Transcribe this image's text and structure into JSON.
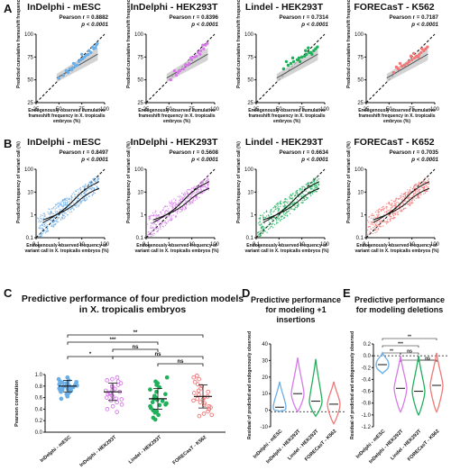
{
  "panels": {
    "A": "A",
    "B": "B",
    "C": "C",
    "D": "D",
    "E": "E"
  },
  "row_a": [
    {
      "title": "InDelphi - mESC",
      "r": "0.8882",
      "p": "p < 0.0001",
      "color": "#6aaee8"
    },
    {
      "title": "InDelphi - HEK293T",
      "r": "0.8396",
      "p": "p < 0.0001",
      "color": "#d67ae8"
    },
    {
      "title": "Lindel - HEK293T",
      "r": "0.7314",
      "p": "p < 0.0001",
      "color": "#21b05c"
    },
    {
      "title": "FORECasT - K562",
      "r": "0.7187",
      "p": "p < 0.0001",
      "color": "#f07878"
    }
  ],
  "row_a_axes": {
    "ylabel": "Predicted cumulative frameshift frequency (%)",
    "xlabel": "Endogenously observed cumulative frameshift frequency in X. tropicalis embryos (%)",
    "xticks": [
      "25",
      "50",
      "75",
      "100"
    ],
    "yticks": [
      "25",
      "50",
      "75",
      "100"
    ]
  },
  "row_b": [
    {
      "title": "InDelphi - mESC",
      "r": "0.8497",
      "p": "p < 0.0001",
      "color": "#6aaee8"
    },
    {
      "title": "InDelphi - HEK293T",
      "r": "0.5608",
      "p": "p < 0.0001",
      "color": "#d67ae8"
    },
    {
      "title": "Lindel - HEK293T",
      "r": "0.6634",
      "p": "p < 0.0001",
      "color": "#21b05c"
    },
    {
      "title": "FORECasT - K652",
      "r": "0.7035",
      "p": "p < 0.0001",
      "color": "#f07878"
    }
  ],
  "row_b_axes": {
    "ylabel": "Predicted frequency of variant call (%)",
    "xlabel": "Endogenously observed frequency of variant call in X. tropicalis embryos (%)",
    "xticks": [
      "0.1",
      "1",
      "10",
      "100"
    ],
    "yticks": [
      "0.1",
      "1",
      "10",
      "100"
    ]
  },
  "stat_prefix": "Pearson r = ",
  "panel_c": {
    "title": "Predictive performance of four prediction models in X. tropicalis embryos",
    "ylabel": "Pearson correlation",
    "yticks": [
      "0.0",
      "0.2",
      "0.4",
      "0.6",
      "0.8",
      "1.0"
    ],
    "categories": [
      "InDelphi - mESC",
      "InDelphi - HEK293T",
      "Lindel - HEK293T",
      "FORECasT - K562"
    ],
    "sig": [
      "**",
      "***",
      "*",
      "ns",
      "ns",
      "ns"
    ]
  },
  "panel_d": {
    "title": "Predictive performance for modeling +1 insertions",
    "ylabel": "Residual of predicted and endogenously observed",
    "yticks": [
      "-10",
      "0",
      "10",
      "20",
      "30",
      "40"
    ],
    "categories": [
      "InDelphi - mESC",
      "InDelphi - HEK293T",
      "Lindel - HEK293T",
      "FORECasT - K562"
    ]
  },
  "panel_e": {
    "title": "Predictive performance for modeling deletions",
    "ylabel": "Residual of predicted and endogenously observed",
    "yticks": [
      "-1.2",
      "-1.0",
      "-0.8",
      "-0.6",
      "-0.4",
      "-0.2",
      "0.0",
      "0.2"
    ],
    "categories": [
      "InDelphi - mESC",
      "InDelphi - HEK293T",
      "Lindel - HEK293T",
      "FORECasT - K562"
    ],
    "sig": [
      "**",
      "***",
      "**",
      "*",
      "ns",
      "ns"
    ]
  },
  "chart_data": [
    {
      "type": "scatter",
      "title": "InDelphi - mESC",
      "xlabel": "Endogenously observed cumulative frameshift frequency in X. tropicalis embryos (%)",
      "ylabel": "Predicted cumulative frameshift frequency (%)",
      "xlim": [
        25,
        100
      ],
      "ylim": [
        25,
        100
      ],
      "series": [
        {
          "values": [
            [
              55,
              55
            ],
            [
              60,
              58
            ],
            [
              62,
              62
            ],
            [
              65,
              63
            ],
            [
              68,
              65
            ],
            [
              70,
              66
            ],
            [
              72,
              70
            ],
            [
              74,
              72
            ],
            [
              76,
              73
            ],
            [
              78,
              75
            ],
            [
              80,
              77
            ],
            [
              82,
              78
            ],
            [
              85,
              80
            ],
            [
              88,
              84
            ],
            [
              90,
              85
            ],
            [
              92,
              90
            ],
            [
              50,
              52
            ],
            [
              58,
              60
            ],
            [
              66,
              68
            ],
            [
              75,
              78
            ],
            [
              83,
              82
            ],
            [
              87,
              86
            ],
            [
              91,
              88
            ],
            [
              64,
              61
            ]
          ]
        }
      ]
    },
    {
      "type": "scatter",
      "title": "InDelphi - HEK293T",
      "xlim": [
        25,
        100
      ],
      "ylim": [
        25,
        100
      ],
      "series": [
        {
          "values": [
            [
              52,
              50
            ],
            [
              58,
              55
            ],
            [
              62,
              60
            ],
            [
              66,
              62
            ],
            [
              70,
              66
            ],
            [
              72,
              68
            ],
            [
              75,
              72
            ],
            [
              78,
              75
            ],
            [
              80,
              76
            ],
            [
              82,
              80
            ],
            [
              85,
              82
            ],
            [
              88,
              84
            ],
            [
              90,
              88
            ],
            [
              92,
              90
            ],
            [
              60,
              58
            ],
            [
              68,
              66
            ],
            [
              74,
              74
            ],
            [
              84,
              78
            ],
            [
              87,
              88
            ],
            [
              56,
              60
            ]
          ]
        }
      ]
    },
    {
      "type": "scatter",
      "title": "Lindel - HEK293T",
      "xlim": [
        25,
        100
      ],
      "ylim": [
        25,
        100
      ],
      "series": [
        {
          "values": [
            [
              55,
              62
            ],
            [
              60,
              66
            ],
            [
              63,
              68
            ],
            [
              66,
              70
            ],
            [
              70,
              72
            ],
            [
              72,
              74
            ],
            [
              75,
              75
            ],
            [
              78,
              76
            ],
            [
              80,
              78
            ],
            [
              83,
              80
            ],
            [
              85,
              80
            ],
            [
              88,
              82
            ],
            [
              90,
              84
            ],
            [
              92,
              86
            ],
            [
              65,
              74
            ],
            [
              73,
              70
            ],
            [
              82,
              85
            ],
            [
              86,
              78
            ],
            [
              58,
              70
            ],
            [
              79,
              82
            ]
          ]
        }
      ]
    },
    {
      "type": "scatter",
      "title": "FORECasT - K562",
      "xlim": [
        25,
        100
      ],
      "ylim": [
        25,
        100
      ],
      "series": [
        {
          "values": [
            [
              55,
              58
            ],
            [
              60,
              62
            ],
            [
              64,
              65
            ],
            [
              67,
              66
            ],
            [
              70,
              68
            ],
            [
              72,
              70
            ],
            [
              75,
              72
            ],
            [
              78,
              74
            ],
            [
              80,
              76
            ],
            [
              83,
              78
            ],
            [
              85,
              80
            ],
            [
              88,
              82
            ],
            [
              90,
              84
            ],
            [
              92,
              86
            ],
            [
              62,
              68
            ],
            [
              74,
              76
            ],
            [
              82,
              75
            ],
            [
              86,
              84
            ],
            [
              58,
              64
            ],
            [
              77,
              79
            ]
          ]
        }
      ]
    },
    {
      "type": "scatter",
      "title": "InDelphi - mESC",
      "xlim": [
        0.1,
        100
      ],
      "ylim": [
        0.1,
        100
      ],
      "scale": "log",
      "series": [
        {
          "values": []
        }
      ]
    },
    {
      "type": "scatter",
      "title": "InDelphi - HEK293T",
      "xlim": [
        0.1,
        100
      ],
      "ylim": [
        0.1,
        100
      ],
      "scale": "log",
      "series": [
        {
          "values": []
        }
      ]
    },
    {
      "type": "scatter",
      "title": "Lindel - HEK293T",
      "xlim": [
        0.1,
        100
      ],
      "ylim": [
        0.1,
        100
      ],
      "scale": "log",
      "series": [
        {
          "values": []
        }
      ]
    },
    {
      "type": "scatter",
      "title": "FORECasT - K652",
      "xlim": [
        0.1,
        100
      ],
      "ylim": [
        0.1,
        100
      ],
      "scale": "log",
      "series": [
        {
          "values": []
        }
      ]
    },
    {
      "type": "scatter",
      "title": "Predictive performance of four prediction models in X. tropicalis embryos",
      "ylabel": "Pearson correlation",
      "ylim": [
        0,
        1
      ],
      "categories": [
        "InDelphi - mESC",
        "InDelphi - HEK293T",
        "Lindel - HEK293T",
        "FORECasT - K562"
      ],
      "series": [
        {
          "name": "InDelphi - mESC",
          "mean": 0.8,
          "sd": 0.1,
          "values": [
            0.95,
            0.9,
            0.88,
            0.86,
            0.85,
            0.84,
            0.83,
            0.82,
            0.8,
            0.8,
            0.79,
            0.78,
            0.77,
            0.76,
            0.75,
            0.74,
            0.72,
            0.7,
            0.68,
            0.62,
            0.58,
            0.92,
            0.87,
            0.81,
            0.73,
            0.66
          ]
        },
        {
          "name": "InDelphi - HEK293T",
          "mean": 0.7,
          "sd": 0.15,
          "values": [
            0.95,
            0.92,
            0.88,
            0.85,
            0.82,
            0.8,
            0.78,
            0.75,
            0.73,
            0.7,
            0.68,
            0.66,
            0.64,
            0.62,
            0.6,
            0.58,
            0.55,
            0.52,
            0.48,
            0.45,
            0.4,
            0.35,
            0.9,
            0.72,
            0.67,
            0.57
          ]
        },
        {
          "name": "Lindel - HEK293T",
          "mean": 0.58,
          "sd": 0.18,
          "values": [
            0.95,
            0.88,
            0.82,
            0.78,
            0.74,
            0.7,
            0.66,
            0.63,
            0.6,
            0.58,
            0.56,
            0.54,
            0.52,
            0.5,
            0.48,
            0.45,
            0.42,
            0.38,
            0.34,
            0.3,
            0.25,
            0.22,
            0.85,
            0.62,
            0.47,
            0.36
          ]
        },
        {
          "name": "FORECasT - K562",
          "mean": 0.62,
          "sd": 0.2,
          "values": [
            0.98,
            0.92,
            0.87,
            0.83,
            0.8,
            0.76,
            0.72,
            0.68,
            0.65,
            0.62,
            0.6,
            0.58,
            0.55,
            0.52,
            0.5,
            0.47,
            0.43,
            0.4,
            0.36,
            0.32,
            0.28,
            0.95,
            0.7,
            0.57,
            0.45,
            0.3
          ]
        }
      ]
    },
    {
      "type": "violin",
      "title": "Predictive performance for modeling +1 insertions",
      "ylim": [
        -10,
        45
      ],
      "categories": [
        "InDelphi - mESC",
        "InDelphi - HEK293T",
        "Lindel - HEK293T",
        "FORECasT - K562"
      ],
      "medians": [
        3,
        12,
        7,
        5
      ],
      "maxima": [
        20,
        36,
        35,
        20
      ],
      "minima": [
        0,
        0,
        -3,
        -8
      ]
    },
    {
      "type": "violin",
      "title": "Predictive performance for modeling deletions",
      "ylim": [
        -1.2,
        0.2
      ],
      "categories": [
        "InDelphi - mESC",
        "InDelphi - HEK293T",
        "Lindel - HEK293T",
        "FORECasT - K562"
      ],
      "medians": [
        -0.15,
        -0.55,
        -0.6,
        -0.5
      ],
      "maxima": [
        0.05,
        0,
        0,
        0.05
      ],
      "minima": [
        -0.3,
        -0.95,
        -1.0,
        -0.95
      ]
    }
  ]
}
